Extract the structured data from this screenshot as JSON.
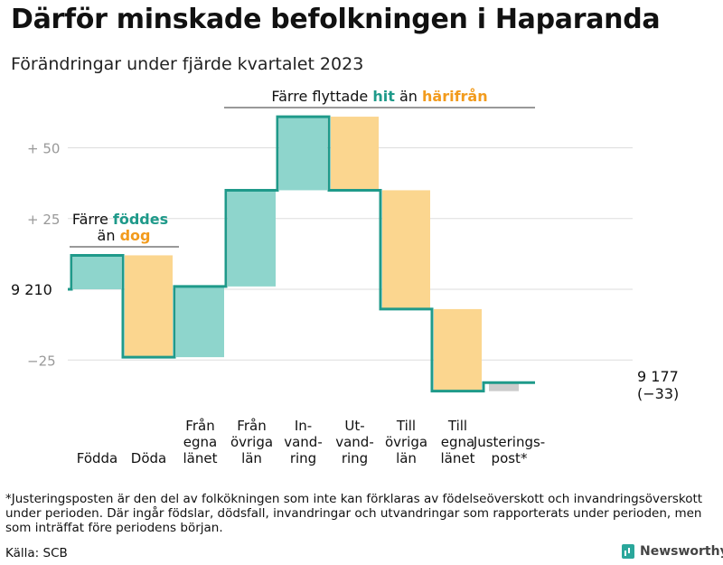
{
  "title": "Därför minskade befolkningen i Haparanda",
  "subtitle": "Förändringar under fjärde kvartalet 2023",
  "colors": {
    "increase": "#8ed5cc",
    "decrease": "#fbd68f",
    "adjustment": "#cccccc",
    "line": "#1f9a8a",
    "teal_text": "#1f9a8a",
    "orange_text": "#f29b1d",
    "grid": "#dddddd"
  },
  "chart_data": {
    "type": "waterfall",
    "start_value": 9210,
    "end_value": 9177,
    "net_change": -33,
    "ylim": [
      -40,
      65
    ],
    "y_ticks": [
      {
        "value": 50,
        "label": "+  50"
      },
      {
        "value": 25,
        "label": "+  25"
      },
      {
        "value": 0,
        "label": "9  210"
      },
      {
        "value": -25,
        "label": "−25"
      }
    ],
    "grid": true,
    "steps": [
      {
        "label": [
          "Födda"
        ],
        "change": 12,
        "kind": "increase"
      },
      {
        "label": [
          "Döda"
        ],
        "change": -36,
        "kind": "decrease"
      },
      {
        "label": [
          "Från",
          "egna",
          "länet"
        ],
        "change": 25,
        "kind": "increase"
      },
      {
        "label": [
          "Från",
          "övriga",
          "län"
        ],
        "change": 34,
        "kind": "increase"
      },
      {
        "label": [
          "In-",
          "vand-",
          "ring"
        ],
        "change": 26,
        "kind": "increase"
      },
      {
        "label": [
          "Ut-",
          "vand-",
          "ring"
        ],
        "change": -26,
        "kind": "decrease"
      },
      {
        "label": [
          "Till",
          "övriga",
          "län"
        ],
        "change": -42,
        "kind": "decrease"
      },
      {
        "label": [
          "Till",
          "egna",
          "länet"
        ],
        "change": -29,
        "kind": "decrease"
      },
      {
        "label": [
          "Justerings-",
          "post*"
        ],
        "change": 3,
        "kind": "adjustment"
      }
    ],
    "end_label": [
      "9 177",
      "(−33)"
    ],
    "annotations": [
      {
        "group": "births",
        "lines": [
          [
            {
              "text": "Färre ",
              "color": "dark"
            },
            {
              "text": "föddes",
              "color": "teal"
            }
          ],
          [
            {
              "text": "än ",
              "color": "dark"
            },
            {
              "text": "dog",
              "color": "orange"
            }
          ]
        ]
      },
      {
        "group": "migration",
        "lines": [
          [
            {
              "text": "Färre flyttade ",
              "color": "dark"
            },
            {
              "text": "hit",
              "color": "teal"
            },
            {
              "text": " än ",
              "color": "dark"
            },
            {
              "text": "härifrån",
              "color": "orange"
            }
          ]
        ]
      }
    ]
  },
  "footnote": "*Justeringsposten är den del av folkökningen som inte kan förklaras av födelseöverskott och invandringsöverskott under perioden. Där ingår födslar, dödsfall, invandringar och utvandringar som rapporterats under perioden, men som inträffat före periodens början.",
  "source": "Källa: SCB",
  "brand": {
    "name": "Newsworthy",
    "icon": "bar-chart-icon"
  }
}
